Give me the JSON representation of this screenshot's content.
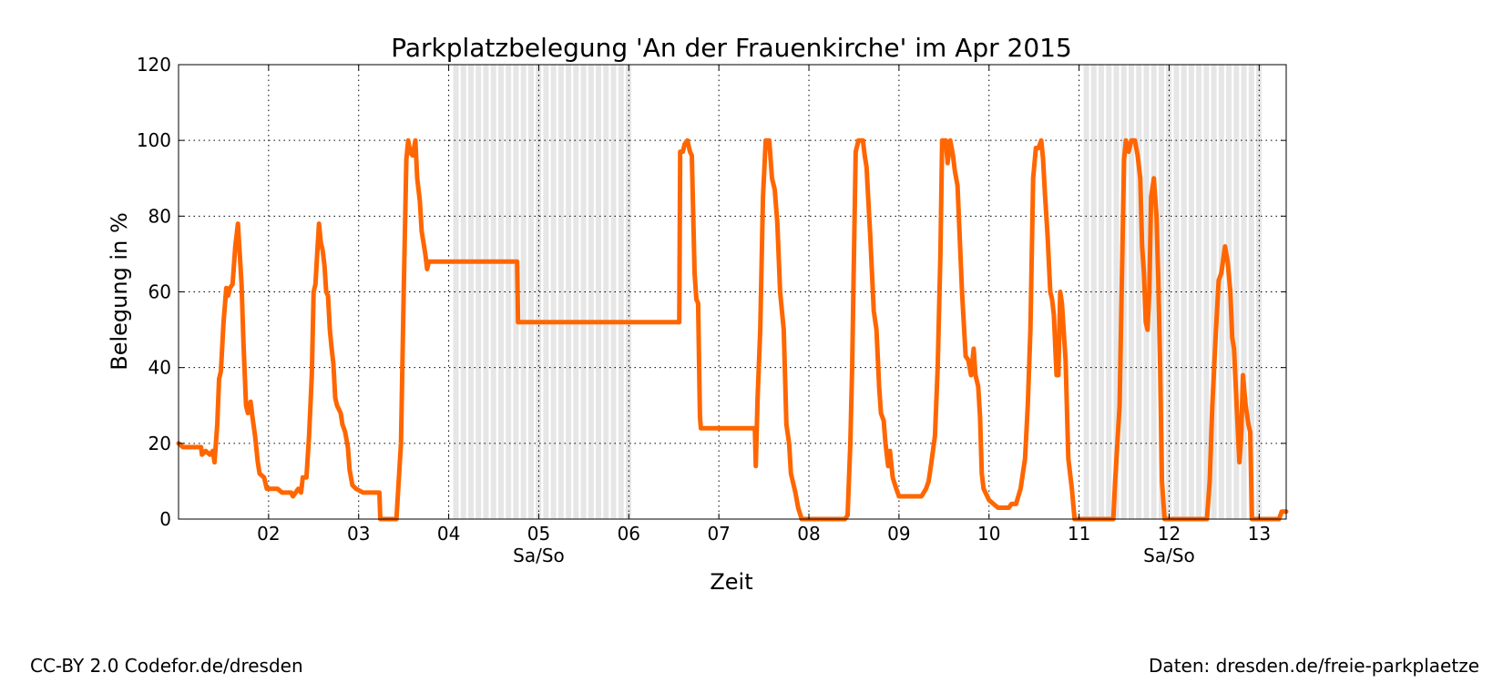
{
  "chart_data": {
    "type": "line",
    "title": "Parkplatzbelegung 'An der Frauenkirche' im Apr 2015",
    "xlabel": "Zeit",
    "ylabel": "Belegung in %",
    "xlim": [
      1,
      13.3
    ],
    "ylim": [
      0,
      120
    ],
    "grid": true,
    "line_color": "#ff6600",
    "weekend_shading_color": "#e6e6e6",
    "x_ticks": [
      {
        "value": 2,
        "label": "02"
      },
      {
        "value": 3,
        "label": "03"
      },
      {
        "value": 4,
        "label": "04"
      },
      {
        "value": 5,
        "label": "05"
      },
      {
        "value": 6,
        "label": "06"
      },
      {
        "value": 7,
        "label": "07"
      },
      {
        "value": 8,
        "label": "08"
      },
      {
        "value": 9,
        "label": "09"
      },
      {
        "value": 10,
        "label": "10"
      },
      {
        "value": 11,
        "label": "11"
      },
      {
        "value": 12,
        "label": "12"
      },
      {
        "value": 13,
        "label": "13"
      }
    ],
    "y_ticks": [
      0,
      20,
      40,
      60,
      80,
      100,
      120
    ],
    "weekends": [
      {
        "start": 4,
        "end": 6,
        "label": "Sa/So"
      },
      {
        "start": 11,
        "end": 13,
        "label": "Sa/So"
      }
    ],
    "series": [
      {
        "points": [
          [
            1.0,
            20
          ],
          [
            1.05,
            19
          ],
          [
            1.1,
            19
          ],
          [
            1.2,
            19
          ],
          [
            1.25,
            19
          ],
          [
            1.26,
            17
          ],
          [
            1.3,
            18
          ],
          [
            1.35,
            17
          ],
          [
            1.38,
            18
          ],
          [
            1.4,
            15
          ],
          [
            1.43,
            25
          ],
          [
            1.45,
            37
          ],
          [
            1.47,
            39
          ],
          [
            1.5,
            52
          ],
          [
            1.52,
            58
          ],
          [
            1.53,
            61
          ],
          [
            1.55,
            59
          ],
          [
            1.57,
            61
          ],
          [
            1.6,
            62
          ],
          [
            1.63,
            72
          ],
          [
            1.66,
            78
          ],
          [
            1.7,
            62
          ],
          [
            1.72,
            47
          ],
          [
            1.75,
            30
          ],
          [
            1.77,
            28
          ],
          [
            1.8,
            31
          ],
          [
            1.82,
            27
          ],
          [
            1.85,
            22
          ],
          [
            1.88,
            15
          ],
          [
            1.9,
            12
          ],
          [
            1.95,
            11
          ],
          [
            1.98,
            8
          ],
          [
            2.1,
            8
          ],
          [
            2.15,
            7
          ],
          [
            2.25,
            7
          ],
          [
            2.27,
            6
          ],
          [
            2.3,
            7
          ],
          [
            2.33,
            8
          ],
          [
            2.36,
            7
          ],
          [
            2.38,
            11
          ],
          [
            2.42,
            11
          ],
          [
            2.45,
            22
          ],
          [
            2.48,
            38
          ],
          [
            2.5,
            60
          ],
          [
            2.52,
            62
          ],
          [
            2.54,
            70
          ],
          [
            2.56,
            78
          ],
          [
            2.58,
            73
          ],
          [
            2.6,
            71
          ],
          [
            2.62,
            67
          ],
          [
            2.64,
            60
          ],
          [
            2.66,
            59
          ],
          [
            2.68,
            50
          ],
          [
            2.7,
            45
          ],
          [
            2.72,
            41
          ],
          [
            2.74,
            32
          ],
          [
            2.76,
            30
          ],
          [
            2.8,
            28
          ],
          [
            2.82,
            25
          ],
          [
            2.85,
            23
          ],
          [
            2.88,
            19
          ],
          [
            2.9,
            13
          ],
          [
            2.93,
            9
          ],
          [
            2.97,
            8
          ],
          [
            3.05,
            7
          ],
          [
            3.1,
            7
          ],
          [
            3.15,
            7
          ],
          [
            3.23,
            7
          ],
          [
            3.24,
            0
          ],
          [
            3.42,
            0
          ],
          [
            3.47,
            20
          ],
          [
            3.5,
            60
          ],
          [
            3.53,
            95
          ],
          [
            3.55,
            100
          ],
          [
            3.57,
            97
          ],
          [
            3.6,
            96
          ],
          [
            3.63,
            100
          ],
          [
            3.65,
            90
          ],
          [
            3.68,
            84
          ],
          [
            3.7,
            76
          ],
          [
            3.72,
            73
          ],
          [
            3.74,
            70
          ],
          [
            3.76,
            66
          ],
          [
            3.78,
            68
          ],
          [
            3.8,
            68
          ],
          [
            4.0,
            68
          ],
          [
            4.5,
            68
          ],
          [
            4.76,
            68
          ],
          [
            4.77,
            52
          ],
          [
            5.0,
            52
          ],
          [
            5.5,
            52
          ],
          [
            6.0,
            52
          ],
          [
            6.56,
            52
          ],
          [
            6.57,
            97
          ],
          [
            6.6,
            97
          ],
          [
            6.62,
            99
          ],
          [
            6.65,
            100
          ],
          [
            6.68,
            97
          ],
          [
            6.7,
            96
          ],
          [
            6.73,
            65
          ],
          [
            6.75,
            58
          ],
          [
            6.77,
            57
          ],
          [
            6.79,
            27
          ],
          [
            6.8,
            24
          ],
          [
            7.0,
            24
          ],
          [
            7.2,
            24
          ],
          [
            7.4,
            24
          ],
          [
            7.41,
            14
          ],
          [
            7.43,
            32
          ],
          [
            7.46,
            50
          ],
          [
            7.49,
            85
          ],
          [
            7.52,
            100
          ],
          [
            7.56,
            100
          ],
          [
            7.59,
            90
          ],
          [
            7.62,
            87
          ],
          [
            7.65,
            78
          ],
          [
            7.68,
            60
          ],
          [
            7.72,
            50
          ],
          [
            7.75,
            25
          ],
          [
            7.78,
            20
          ],
          [
            7.8,
            12
          ],
          [
            7.85,
            7
          ],
          [
            7.88,
            3
          ],
          [
            7.92,
            0
          ],
          [
            8.0,
            0
          ],
          [
            8.2,
            0
          ],
          [
            8.4,
            0
          ],
          [
            8.43,
            1
          ],
          [
            8.46,
            20
          ],
          [
            8.48,
            40
          ],
          [
            8.5,
            70
          ],
          [
            8.52,
            97
          ],
          [
            8.55,
            100
          ],
          [
            8.6,
            100
          ],
          [
            8.62,
            96
          ],
          [
            8.64,
            93
          ],
          [
            8.68,
            75
          ],
          [
            8.72,
            55
          ],
          [
            8.75,
            50
          ],
          [
            8.78,
            35
          ],
          [
            8.8,
            28
          ],
          [
            8.83,
            26
          ],
          [
            8.85,
            20
          ],
          [
            8.88,
            14
          ],
          [
            8.9,
            18
          ],
          [
            8.93,
            11
          ],
          [
            8.97,
            8
          ],
          [
            9.0,
            6
          ],
          [
            9.1,
            6
          ],
          [
            9.25,
            6
          ],
          [
            9.3,
            8
          ],
          [
            9.33,
            10
          ],
          [
            9.36,
            15
          ],
          [
            9.4,
            22
          ],
          [
            9.43,
            40
          ],
          [
            9.46,
            70
          ],
          [
            9.48,
            100
          ],
          [
            9.52,
            100
          ],
          [
            9.54,
            94
          ],
          [
            9.57,
            100
          ],
          [
            9.6,
            96
          ],
          [
            9.62,
            92
          ],
          [
            9.65,
            88
          ],
          [
            9.7,
            60
          ],
          [
            9.74,
            43
          ],
          [
            9.77,
            42
          ],
          [
            9.8,
            38
          ],
          [
            9.83,
            45
          ],
          [
            9.85,
            38
          ],
          [
            9.88,
            35
          ],
          [
            9.9,
            27
          ],
          [
            9.92,
            12
          ],
          [
            9.94,
            8
          ],
          [
            9.98,
            6
          ],
          [
            10.0,
            5
          ],
          [
            10.05,
            4
          ],
          [
            10.1,
            3
          ],
          [
            10.22,
            3
          ],
          [
            10.25,
            4
          ],
          [
            10.3,
            4
          ],
          [
            10.35,
            8
          ],
          [
            10.4,
            16
          ],
          [
            10.43,
            30
          ],
          [
            10.46,
            50
          ],
          [
            10.49,
            90
          ],
          [
            10.52,
            98
          ],
          [
            10.55,
            98
          ],
          [
            10.58,
            100
          ],
          [
            10.6,
            95
          ],
          [
            10.62,
            86
          ],
          [
            10.65,
            75
          ],
          [
            10.68,
            60
          ],
          [
            10.7,
            58
          ],
          [
            10.72,
            54
          ],
          [
            10.75,
            38
          ],
          [
            10.77,
            38
          ],
          [
            10.79,
            60
          ],
          [
            10.81,
            57
          ],
          [
            10.85,
            42
          ],
          [
            10.88,
            16
          ],
          [
            10.92,
            8
          ],
          [
            10.95,
            0
          ],
          [
            11.0,
            0
          ],
          [
            11.2,
            0
          ],
          [
            11.38,
            0
          ],
          [
            11.4,
            10
          ],
          [
            11.45,
            30
          ],
          [
            11.48,
            70
          ],
          [
            11.5,
            95
          ],
          [
            11.52,
            100
          ],
          [
            11.55,
            97
          ],
          [
            11.58,
            100
          ],
          [
            11.62,
            100
          ],
          [
            11.65,
            96
          ],
          [
            11.68,
            90
          ],
          [
            11.7,
            72
          ],
          [
            11.72,
            65
          ],
          [
            11.74,
            52
          ],
          [
            11.76,
            50
          ],
          [
            11.78,
            60
          ],
          [
            11.8,
            85
          ],
          [
            11.83,
            90
          ],
          [
            11.86,
            80
          ],
          [
            11.88,
            63
          ],
          [
            11.9,
            40
          ],
          [
            11.92,
            10
          ],
          [
            11.95,
            0
          ],
          [
            12.1,
            0
          ],
          [
            12.3,
            0
          ],
          [
            12.42,
            0
          ],
          [
            12.45,
            10
          ],
          [
            12.48,
            30
          ],
          [
            12.52,
            50
          ],
          [
            12.55,
            63
          ],
          [
            12.58,
            65
          ],
          [
            12.62,
            72
          ],
          [
            12.65,
            68
          ],
          [
            12.68,
            60
          ],
          [
            12.7,
            48
          ],
          [
            12.72,
            45
          ],
          [
            12.75,
            30
          ],
          [
            12.78,
            15
          ],
          [
            12.8,
            22
          ],
          [
            12.82,
            38
          ],
          [
            12.85,
            30
          ],
          [
            12.88,
            25
          ],
          [
            12.9,
            23
          ],
          [
            12.92,
            0
          ],
          [
            13.1,
            0
          ],
          [
            13.22,
            0
          ],
          [
            13.25,
            2
          ],
          [
            13.3,
            2
          ]
        ]
      }
    ]
  },
  "footer": {
    "left": "CC-BY 2.0 Codefor.de/dresden",
    "right": "Daten: dresden.de/freie-parkplaetze"
  }
}
